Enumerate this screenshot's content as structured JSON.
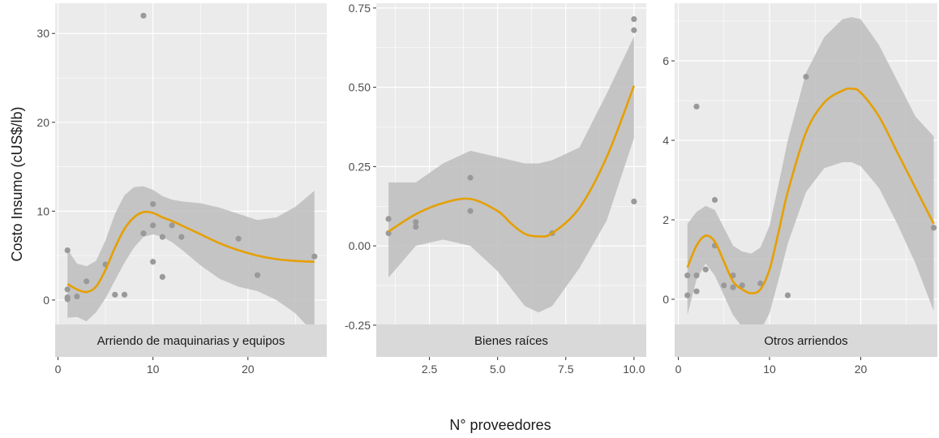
{
  "chart_data": {
    "type": "scatter",
    "xlabel": "N° proveedores",
    "ylabel": "Costo Insumo (cUS$/lb)",
    "colors": {
      "points": "#999999",
      "smooth_line": "#E69F00",
      "ribbon": "#bdbdbd",
      "panel_bg": "#ebebeb",
      "strip_bg": "#d9d9d9",
      "grid": "#ffffff"
    },
    "panels": [
      {
        "name": "Arriendo de maquinarias y equipos",
        "xlim": [
          -0.3,
          28.3
        ],
        "ylim": [
          -6.4,
          33.4
        ],
        "x_ticks": [
          0,
          10,
          20
        ],
        "x_tick_labels": [
          "0",
          "10",
          "20"
        ],
        "y_ticks": [
          0,
          10,
          20,
          30
        ],
        "y_tick_labels": [
          "0",
          "10",
          "20",
          "30"
        ],
        "points": [
          {
            "x": 1,
            "y": 5.6
          },
          {
            "x": 1,
            "y": 1.2
          },
          {
            "x": 1,
            "y": 0.3
          },
          {
            "x": 1,
            "y": 0.1
          },
          {
            "x": 2,
            "y": 0.4
          },
          {
            "x": 3,
            "y": 2.1
          },
          {
            "x": 5,
            "y": 4.0
          },
          {
            "x": 6,
            "y": 0.6
          },
          {
            "x": 7,
            "y": 0.6
          },
          {
            "x": 9,
            "y": 32.0
          },
          {
            "x": 9,
            "y": 7.5
          },
          {
            "x": 10,
            "y": 10.8
          },
          {
            "x": 10,
            "y": 8.4
          },
          {
            "x": 10,
            "y": 4.3
          },
          {
            "x": 11,
            "y": 7.1
          },
          {
            "x": 11,
            "y": 2.6
          },
          {
            "x": 12,
            "y": 8.4
          },
          {
            "x": 13,
            "y": 7.1
          },
          {
            "x": 19,
            "y": 6.9
          },
          {
            "x": 21,
            "y": 2.8
          },
          {
            "x": 27,
            "y": 4.9
          }
        ],
        "smooth": [
          {
            "x": 1,
            "y": 1.8
          },
          {
            "x": 2,
            "y": 1.2
          },
          {
            "x": 3,
            "y": 0.9
          },
          {
            "x": 4,
            "y": 1.5
          },
          {
            "x": 5,
            "y": 3.4
          },
          {
            "x": 6,
            "y": 5.9
          },
          {
            "x": 7,
            "y": 8.0
          },
          {
            "x": 8,
            "y": 9.3
          },
          {
            "x": 9,
            "y": 9.9
          },
          {
            "x": 10,
            "y": 9.8
          },
          {
            "x": 11,
            "y": 9.3
          },
          {
            "x": 12,
            "y": 8.9
          },
          {
            "x": 13,
            "y": 8.4
          },
          {
            "x": 15,
            "y": 7.4
          },
          {
            "x": 17,
            "y": 6.4
          },
          {
            "x": 19,
            "y": 5.6
          },
          {
            "x": 21,
            "y": 5.0
          },
          {
            "x": 23,
            "y": 4.6
          },
          {
            "x": 25,
            "y": 4.4
          },
          {
            "x": 27,
            "y": 4.3
          }
        ],
        "ribbon": [
          {
            "x": 1,
            "lo": -2.0,
            "hi": 5.7
          },
          {
            "x": 2,
            "lo": -1.9,
            "hi": 4.1
          },
          {
            "x": 3,
            "lo": -2.4,
            "hi": 3.8
          },
          {
            "x": 4,
            "lo": -1.4,
            "hi": 4.4
          },
          {
            "x": 5,
            "lo": 0.2,
            "hi": 6.7
          },
          {
            "x": 6,
            "lo": 2.2,
            "hi": 9.7
          },
          {
            "x": 7,
            "lo": 4.2,
            "hi": 11.8
          },
          {
            "x": 8,
            "lo": 5.9,
            "hi": 12.7
          },
          {
            "x": 9,
            "lo": 7.1,
            "hi": 12.8
          },
          {
            "x": 10,
            "lo": 7.4,
            "hi": 12.4
          },
          {
            "x": 11,
            "lo": 7.1,
            "hi": 11.7
          },
          {
            "x": 12,
            "lo": 6.5,
            "hi": 11.3
          },
          {
            "x": 13,
            "lo": 5.7,
            "hi": 11.1
          },
          {
            "x": 15,
            "lo": 3.9,
            "hi": 10.9
          },
          {
            "x": 17,
            "lo": 2.4,
            "hi": 10.4
          },
          {
            "x": 19,
            "lo": 1.5,
            "hi": 9.7
          },
          {
            "x": 21,
            "lo": 1.0,
            "hi": 9.0
          },
          {
            "x": 23,
            "lo": 0.0,
            "hi": 9.3
          },
          {
            "x": 25,
            "lo": -1.5,
            "hi": 10.5
          },
          {
            "x": 27,
            "lo": -3.8,
            "hi": 12.3
          }
        ]
      },
      {
        "name": "Bienes raíces",
        "xlim": [
          0.55,
          10.45
        ],
        "ylim": [
          -0.35,
          0.765
        ],
        "x_ticks": [
          2.5,
          5.0,
          7.5,
          10.0
        ],
        "x_tick_labels": [
          "2.5",
          "5.0",
          "7.5",
          "10.0"
        ],
        "y_ticks": [
          -0.25,
          0.0,
          0.25,
          0.5,
          0.75
        ],
        "y_tick_labels": [
          "-0.25",
          "0.00",
          "0.25",
          "0.50",
          "0.75"
        ],
        "points": [
          {
            "x": 1,
            "y": 0.085
          },
          {
            "x": 1,
            "y": 0.04
          },
          {
            "x": 2,
            "y": 0.075
          },
          {
            "x": 2,
            "y": 0.06
          },
          {
            "x": 4,
            "y": 0.215
          },
          {
            "x": 4,
            "y": 0.11
          },
          {
            "x": 7,
            "y": 0.04
          },
          {
            "x": 10,
            "y": 0.715
          },
          {
            "x": 10,
            "y": 0.68
          },
          {
            "x": 10,
            "y": 0.14
          }
        ],
        "smooth": [
          {
            "x": 1,
            "y": 0.045
          },
          {
            "x": 2,
            "y": 0.1
          },
          {
            "x": 3,
            "y": 0.135
          },
          {
            "x": 4,
            "y": 0.148
          },
          {
            "x": 5,
            "y": 0.11
          },
          {
            "x": 5.5,
            "y": 0.07
          },
          {
            "x": 6,
            "y": 0.038
          },
          {
            "x": 6.5,
            "y": 0.03
          },
          {
            "x": 7,
            "y": 0.04
          },
          {
            "x": 8,
            "y": 0.12
          },
          {
            "x": 9,
            "y": 0.28
          },
          {
            "x": 10,
            "y": 0.505
          }
        ],
        "ribbon": [
          {
            "x": 1,
            "lo": -0.1,
            "hi": 0.2
          },
          {
            "x": 2,
            "lo": 0.0,
            "hi": 0.2
          },
          {
            "x": 3,
            "lo": 0.02,
            "hi": 0.26
          },
          {
            "x": 4,
            "lo": 0.0,
            "hi": 0.3
          },
          {
            "x": 5,
            "lo": -0.08,
            "hi": 0.28
          },
          {
            "x": 6,
            "lo": -0.19,
            "hi": 0.26
          },
          {
            "x": 6.5,
            "lo": -0.21,
            "hi": 0.26
          },
          {
            "x": 7,
            "lo": -0.19,
            "hi": 0.27
          },
          {
            "x": 8,
            "lo": -0.07,
            "hi": 0.31
          },
          {
            "x": 9,
            "lo": 0.08,
            "hi": 0.48
          },
          {
            "x": 10,
            "lo": 0.34,
            "hi": 0.66
          }
        ]
      },
      {
        "name": "Otros arriendos",
        "xlim": [
          -0.4,
          28.4
        ],
        "ylim": [
          -1.45,
          7.45
        ],
        "x_ticks": [
          0,
          10,
          20
        ],
        "x_tick_labels": [
          "0",
          "10",
          "20"
        ],
        "y_ticks": [
          0,
          2,
          4,
          6
        ],
        "y_tick_labels": [
          "0",
          "2",
          "4",
          "6"
        ],
        "points": [
          {
            "x": 1,
            "y": 0.6
          },
          {
            "x": 1,
            "y": 0.1
          },
          {
            "x": 2,
            "y": 4.85
          },
          {
            "x": 2,
            "y": 0.6
          },
          {
            "x": 2,
            "y": 0.2
          },
          {
            "x": 3,
            "y": 0.75
          },
          {
            "x": 4,
            "y": 2.5
          },
          {
            "x": 4,
            "y": 1.35
          },
          {
            "x": 5,
            "y": 0.35
          },
          {
            "x": 6,
            "y": 0.6
          },
          {
            "x": 6,
            "y": 0.3
          },
          {
            "x": 7,
            "y": 0.35
          },
          {
            "x": 9,
            "y": 0.4
          },
          {
            "x": 12,
            "y": 0.1
          },
          {
            "x": 14,
            "y": 5.6
          },
          {
            "x": 28,
            "y": 1.8
          }
        ],
        "smooth": [
          {
            "x": 1,
            "y": 0.8
          },
          {
            "x": 2,
            "y": 1.35
          },
          {
            "x": 3,
            "y": 1.6
          },
          {
            "x": 4,
            "y": 1.45
          },
          {
            "x": 5,
            "y": 0.95
          },
          {
            "x": 6,
            "y": 0.45
          },
          {
            "x": 7,
            "y": 0.25
          },
          {
            "x": 8,
            "y": 0.15
          },
          {
            "x": 9,
            "y": 0.25
          },
          {
            "x": 10,
            "y": 0.75
          },
          {
            "x": 11,
            "y": 1.7
          },
          {
            "x": 12,
            "y": 2.7
          },
          {
            "x": 14,
            "y": 4.2
          },
          {
            "x": 16,
            "y": 4.95
          },
          {
            "x": 18,
            "y": 5.25
          },
          {
            "x": 19,
            "y": 5.3
          },
          {
            "x": 20,
            "y": 5.2
          },
          {
            "x": 22,
            "y": 4.6
          },
          {
            "x": 24,
            "y": 3.7
          },
          {
            "x": 26,
            "y": 2.8
          },
          {
            "x": 28,
            "y": 1.9
          }
        ],
        "ribbon": [
          {
            "x": 1,
            "lo": -0.4,
            "hi": 1.9
          },
          {
            "x": 2,
            "lo": 0.5,
            "hi": 2.2
          },
          {
            "x": 3,
            "lo": 0.9,
            "hi": 2.35
          },
          {
            "x": 4,
            "lo": 0.6,
            "hi": 2.25
          },
          {
            "x": 5,
            "lo": 0.1,
            "hi": 1.8
          },
          {
            "x": 6,
            "lo": -0.4,
            "hi": 1.35
          },
          {
            "x": 7,
            "lo": -0.7,
            "hi": 1.2
          },
          {
            "x": 8,
            "lo": -0.85,
            "hi": 1.15
          },
          {
            "x": 9,
            "lo": -0.8,
            "hi": 1.3
          },
          {
            "x": 10,
            "lo": -0.35,
            "hi": 1.85
          },
          {
            "x": 11,
            "lo": 0.5,
            "hi": 2.9
          },
          {
            "x": 12,
            "lo": 1.4,
            "hi": 4.0
          },
          {
            "x": 14,
            "lo": 2.7,
            "hi": 5.7
          },
          {
            "x": 16,
            "lo": 3.3,
            "hi": 6.6
          },
          {
            "x": 18,
            "lo": 3.45,
            "hi": 7.05
          },
          {
            "x": 19,
            "lo": 3.45,
            "hi": 7.1
          },
          {
            "x": 20,
            "lo": 3.35,
            "hi": 7.05
          },
          {
            "x": 22,
            "lo": 2.8,
            "hi": 6.4
          },
          {
            "x": 24,
            "lo": 1.9,
            "hi": 5.5
          },
          {
            "x": 26,
            "lo": 0.9,
            "hi": 4.6
          },
          {
            "x": 28,
            "lo": -0.3,
            "hi": 4.1
          }
        ]
      }
    ]
  }
}
